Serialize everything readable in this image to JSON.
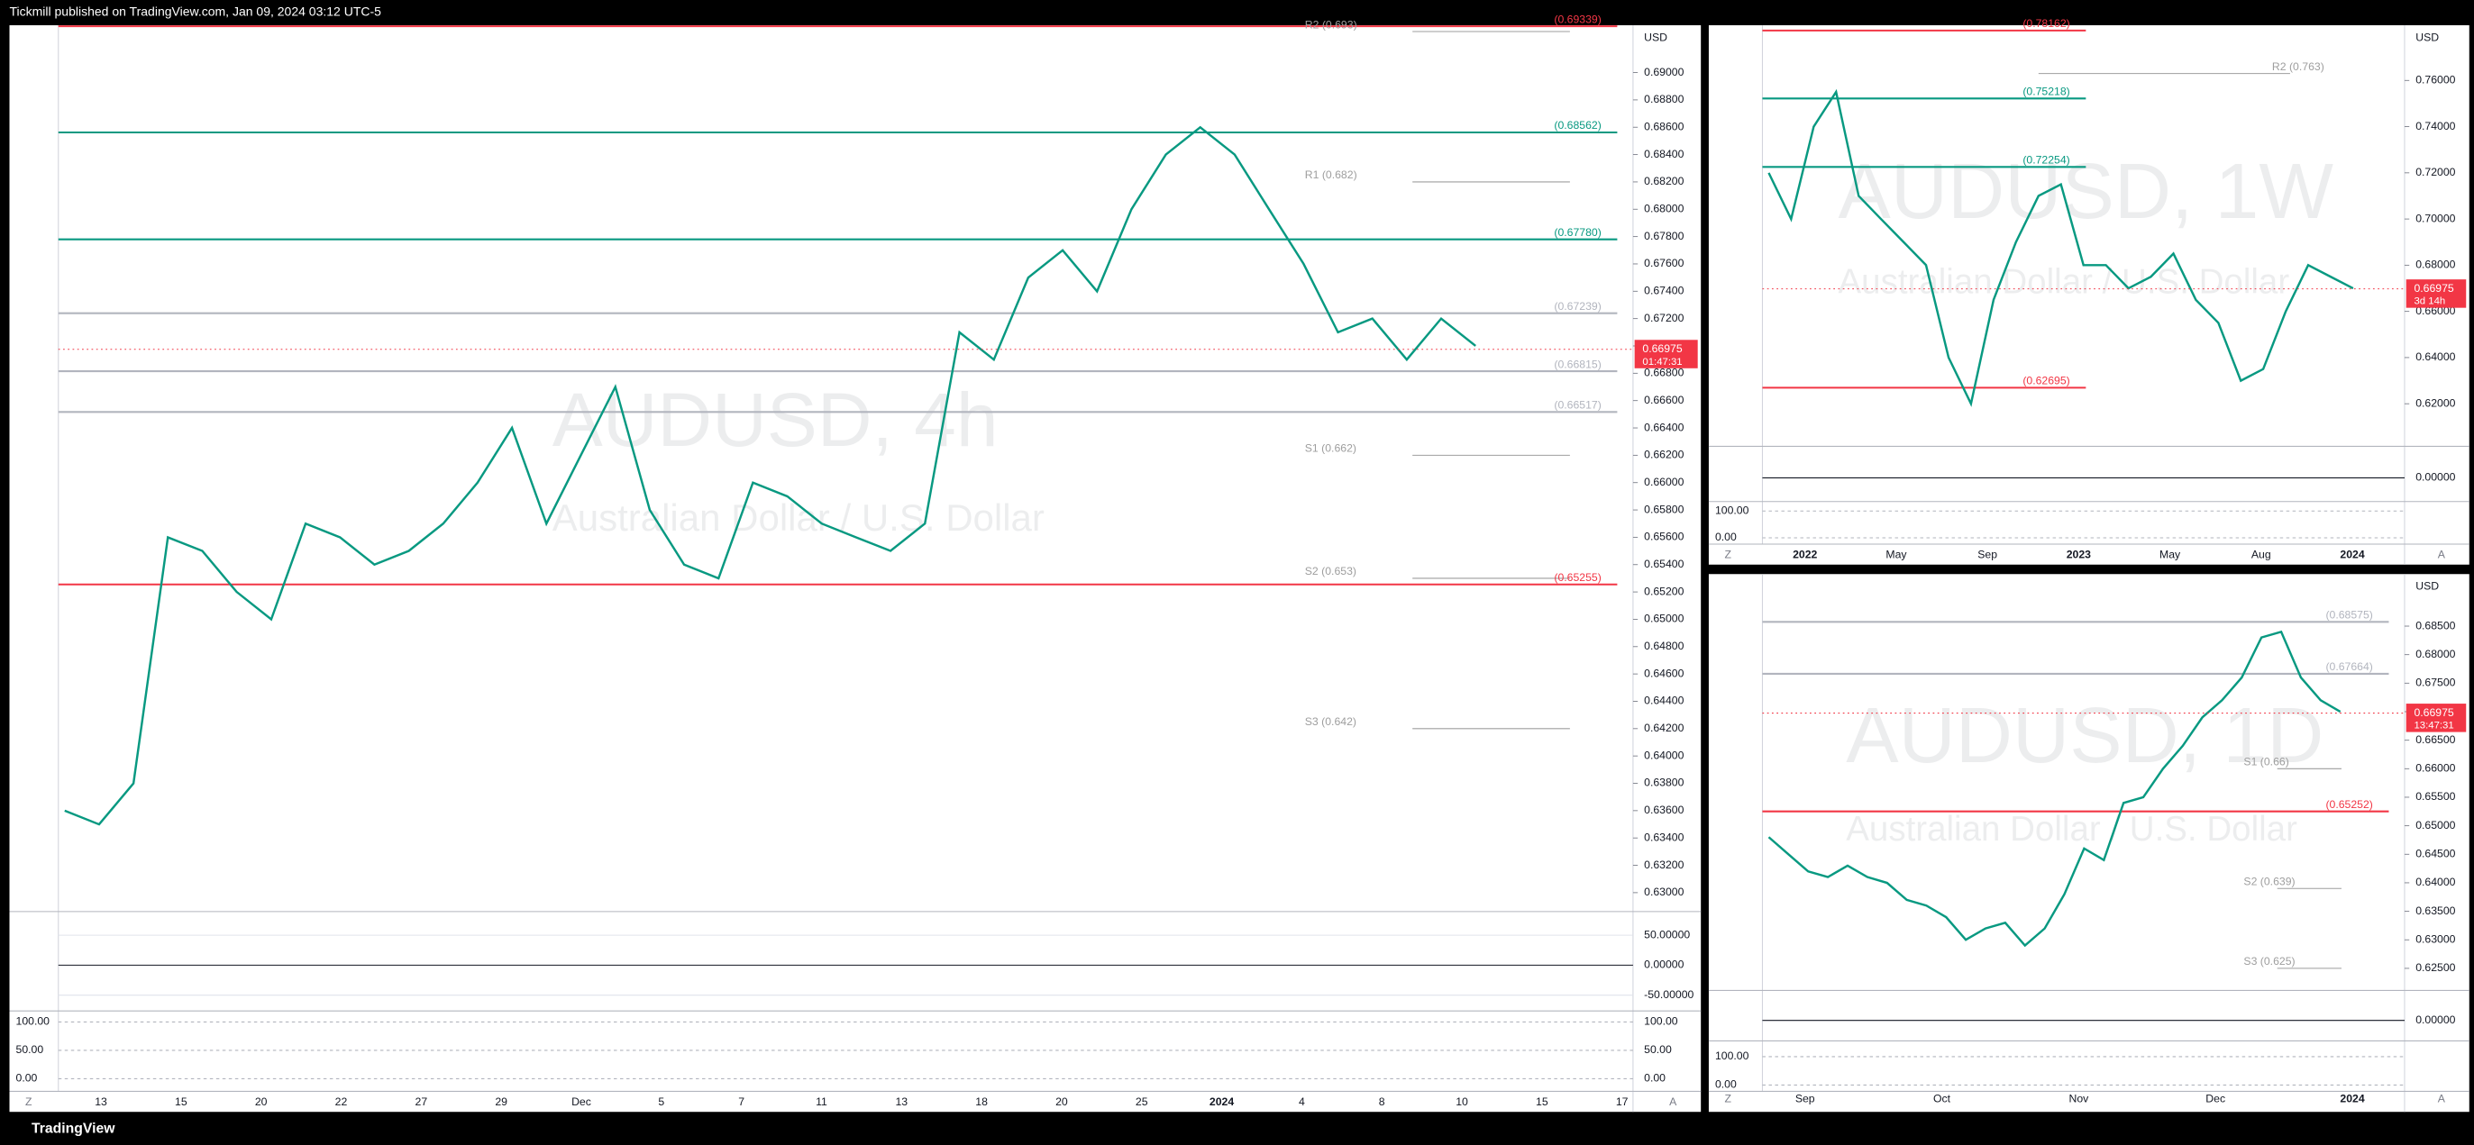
{
  "header": "Tickmill published on TradingView.com, Jan 09, 2024 03:12 UTC-5",
  "footer": "TradingView",
  "panels": [
    {
      "currency": "USD",
      "watermark": "AUDUSD, 4h",
      "subtitle": "Australian Dollar / U.S. Dollar",
      "price_ticks": [
        {
          "value": 0.69,
          "label": "0.69000"
        },
        {
          "value": 0.688,
          "label": "0.68800"
        },
        {
          "value": 0.686,
          "label": "0.68600"
        },
        {
          "value": 0.684,
          "label": "0.68400"
        },
        {
          "value": 0.682,
          "label": "0.68200"
        },
        {
          "value": 0.68,
          "label": "0.68000"
        },
        {
          "value": 0.678,
          "label": "0.67800"
        },
        {
          "value": 0.676,
          "label": "0.67600"
        },
        {
          "value": 0.674,
          "label": "0.67400"
        },
        {
          "value": 0.672,
          "label": "0.67200"
        },
        {
          "value": 0.67,
          "label": "0.67000"
        },
        {
          "value": 0.668,
          "label": "0.66800"
        },
        {
          "value": 0.666,
          "label": "0.66600"
        },
        {
          "value": 0.664,
          "label": "0.66400"
        },
        {
          "value": 0.662,
          "label": "0.66200"
        },
        {
          "value": 0.66,
          "label": "0.66000"
        },
        {
          "value": 0.658,
          "label": "0.65800"
        },
        {
          "value": 0.656,
          "label": "0.65600"
        },
        {
          "value": 0.654,
          "label": "0.65400"
        },
        {
          "value": 0.652,
          "label": "0.65200"
        },
        {
          "value": 0.65,
          "label": "0.65000"
        },
        {
          "value": 0.648,
          "label": "0.64800"
        },
        {
          "value": 0.646,
          "label": "0.64600"
        },
        {
          "value": 0.644,
          "label": "0.64400"
        },
        {
          "value": 0.642,
          "label": "0.64200"
        },
        {
          "value": 0.64,
          "label": "0.64000"
        },
        {
          "value": 0.638,
          "label": "0.63800"
        },
        {
          "value": 0.636,
          "label": "0.63600"
        },
        {
          "value": 0.634,
          "label": "0.63400"
        },
        {
          "value": 0.632,
          "label": "0.63200"
        },
        {
          "value": 0.63,
          "label": "0.63000"
        }
      ],
      "osc_ticks": [
        {
          "value": 50,
          "label": "50.00000"
        },
        {
          "value": 0,
          "label": "0.00000"
        },
        {
          "value": -50,
          "label": "-50.00000"
        }
      ],
      "stoch_ticks": [
        {
          "value": 100,
          "label": "100.00"
        },
        {
          "value": 50,
          "label": "50.00"
        },
        {
          "value": 0,
          "label": "0.00"
        }
      ],
      "time_labels": [
        "13",
        "15",
        "20",
        "22",
        "27",
        "29",
        "Dec",
        "5",
        "7",
        "11",
        "13",
        "18",
        "20",
        "25",
        "2024",
        "4",
        "8",
        "10",
        "15",
        "17"
      ],
      "levels": [
        {
          "value": 0.69339,
          "label": "(0.69339)",
          "color": "#f23645"
        },
        {
          "value": 0.693,
          "label": "R2 (0.693)",
          "color": "#9e9e9e"
        },
        {
          "value": 0.68562,
          "label": "(0.68562)",
          "color": "#089981"
        },
        {
          "value": 0.682,
          "label": "R1 (0.682)",
          "color": "#9e9e9e"
        },
        {
          "value": 0.6778,
          "label": "(0.67780)",
          "color": "#089981"
        },
        {
          "value": 0.67239,
          "label": "(0.67239)",
          "color": "#b2b5be"
        },
        {
          "value": 0.66815,
          "label": "(0.66815)",
          "color": "#b2b5be"
        },
        {
          "value": 0.66517,
          "label": "(0.66517)",
          "color": "#b2b5be"
        },
        {
          "value": 0.662,
          "label": "S1 (0.662)",
          "color": "#9e9e9e"
        },
        {
          "value": 0.653,
          "label": "S2 (0.653)",
          "color": "#9e9e9e"
        },
        {
          "value": 0.65255,
          "label": "(0.65255)",
          "color": "#f23645"
        },
        {
          "value": 0.642,
          "label": "S3 (0.642)",
          "color": "#9e9e9e"
        }
      ],
      "price_tag": {
        "value": 0.66975,
        "label": "0.66975",
        "countdown": "01:47:31"
      },
      "closes": [
        0.636,
        0.635,
        0.638,
        0.656,
        0.655,
        0.652,
        0.65,
        0.657,
        0.656,
        0.654,
        0.655,
        0.657,
        0.66,
        0.664,
        0.657,
        0.662,
        0.667,
        0.658,
        0.654,
        0.653,
        0.66,
        0.659,
        0.657,
        0.656,
        0.655,
        0.657,
        0.671,
        0.669,
        0.675,
        0.677,
        0.674,
        0.68,
        0.684,
        0.686,
        0.684,
        0.68,
        0.676,
        0.671,
        0.672,
        0.669,
        0.672,
        0.67
      ]
    },
    {
      "currency": "USD",
      "watermark": "AUDUSD, 1W",
      "subtitle": "Australian Dollar / U.S. Dollar",
      "price_ticks": [
        {
          "value": 0.76,
          "label": "0.76000"
        },
        {
          "value": 0.74,
          "label": "0.74000"
        },
        {
          "value": 0.72,
          "label": "0.72000"
        },
        {
          "value": 0.7,
          "label": "0.70000"
        },
        {
          "value": 0.68,
          "label": "0.68000"
        },
        {
          "value": 0.66,
          "label": "0.66000"
        },
        {
          "value": 0.64,
          "label": "0.64000"
        },
        {
          "value": 0.62,
          "label": "0.62000"
        }
      ],
      "osc_ticks": [
        {
          "value": 0,
          "label": "0.00000"
        }
      ],
      "stoch_ticks": [
        {
          "value": 100,
          "label": "100.00"
        },
        {
          "value": 0,
          "label": "0.00"
        }
      ],
      "time_labels": [
        "2022",
        "May",
        "Sep",
        "2023",
        "May",
        "Aug",
        "2024"
      ],
      "levels": [
        {
          "value": 0.78162,
          "label": "(0.78162)",
          "color": "#f23645"
        },
        {
          "value": 0.763,
          "label": "R2 (0.763)",
          "color": "#9e9e9e"
        },
        {
          "value": 0.75218,
          "label": "(0.75218)",
          "color": "#089981"
        },
        {
          "value": 0.72254,
          "label": "(0.72254)",
          "color": "#089981"
        },
        {
          "value": 0.62695,
          "label": "(0.62695)",
          "color": "#f23645"
        }
      ],
      "price_tag": {
        "value": 0.66975,
        "label": "0.66975",
        "countdown": "3d 14h"
      },
      "closes": [
        0.72,
        0.7,
        0.74,
        0.755,
        0.71,
        0.7,
        0.69,
        0.68,
        0.64,
        0.62,
        0.665,
        0.69,
        0.71,
        0.715,
        0.68,
        0.68,
        0.67,
        0.675,
        0.685,
        0.665,
        0.655,
        0.63,
        0.635,
        0.66,
        0.68,
        0.675,
        0.67
      ]
    },
    {
      "currency": "USD",
      "watermark": "AUDUSD, 1D",
      "subtitle": "Australian Dollar / U.S. Dollar",
      "price_ticks": [
        {
          "value": 0.685,
          "label": "0.68500"
        },
        {
          "value": 0.68,
          "label": "0.68000"
        },
        {
          "value": 0.675,
          "label": "0.67500"
        },
        {
          "value": 0.67,
          "label": "0.67000"
        },
        {
          "value": 0.665,
          "label": "0.66500"
        },
        {
          "value": 0.66,
          "label": "0.66000"
        },
        {
          "value": 0.655,
          "label": "0.65500"
        },
        {
          "value": 0.65,
          "label": "0.65000"
        },
        {
          "value": 0.645,
          "label": "0.64500"
        },
        {
          "value": 0.64,
          "label": "0.64000"
        },
        {
          "value": 0.635,
          "label": "0.63500"
        },
        {
          "value": 0.63,
          "label": "0.63000"
        },
        {
          "value": 0.625,
          "label": "0.62500"
        }
      ],
      "osc_ticks": [
        {
          "value": 0,
          "label": "0.00000"
        }
      ],
      "stoch_ticks": [
        {
          "value": 100,
          "label": "100.00"
        },
        {
          "value": 0,
          "label": "0.00"
        }
      ],
      "time_labels": [
        "Sep",
        "Oct",
        "Nov",
        "Dec",
        "2024"
      ],
      "levels": [
        {
          "value": 0.68575,
          "label": "(0.68575)",
          "color": "#b2b5be"
        },
        {
          "value": 0.67664,
          "label": "(0.67664)",
          "color": "#b2b5be"
        },
        {
          "value": 0.66,
          "label": "S1 (0.66)",
          "color": "#9e9e9e"
        },
        {
          "value": 0.65252,
          "label": "(0.65252)",
          "color": "#f23645"
        },
        {
          "value": 0.639,
          "label": "S2 (0.639)",
          "color": "#9e9e9e"
        },
        {
          "value": 0.625,
          "label": "S3 (0.625)",
          "color": "#9e9e9e"
        }
      ],
      "price_tag": {
        "value": 0.66975,
        "label": "0.66975",
        "countdown": "13:47:31"
      },
      "closes": [
        0.648,
        0.645,
        0.642,
        0.641,
        0.643,
        0.641,
        0.64,
        0.637,
        0.636,
        0.634,
        0.63,
        0.632,
        0.633,
        0.629,
        0.632,
        0.638,
        0.646,
        0.644,
        0.654,
        0.655,
        0.66,
        0.664,
        0.669,
        0.672,
        0.676,
        0.683,
        0.684,
        0.676,
        0.672,
        0.67
      ]
    }
  ]
}
